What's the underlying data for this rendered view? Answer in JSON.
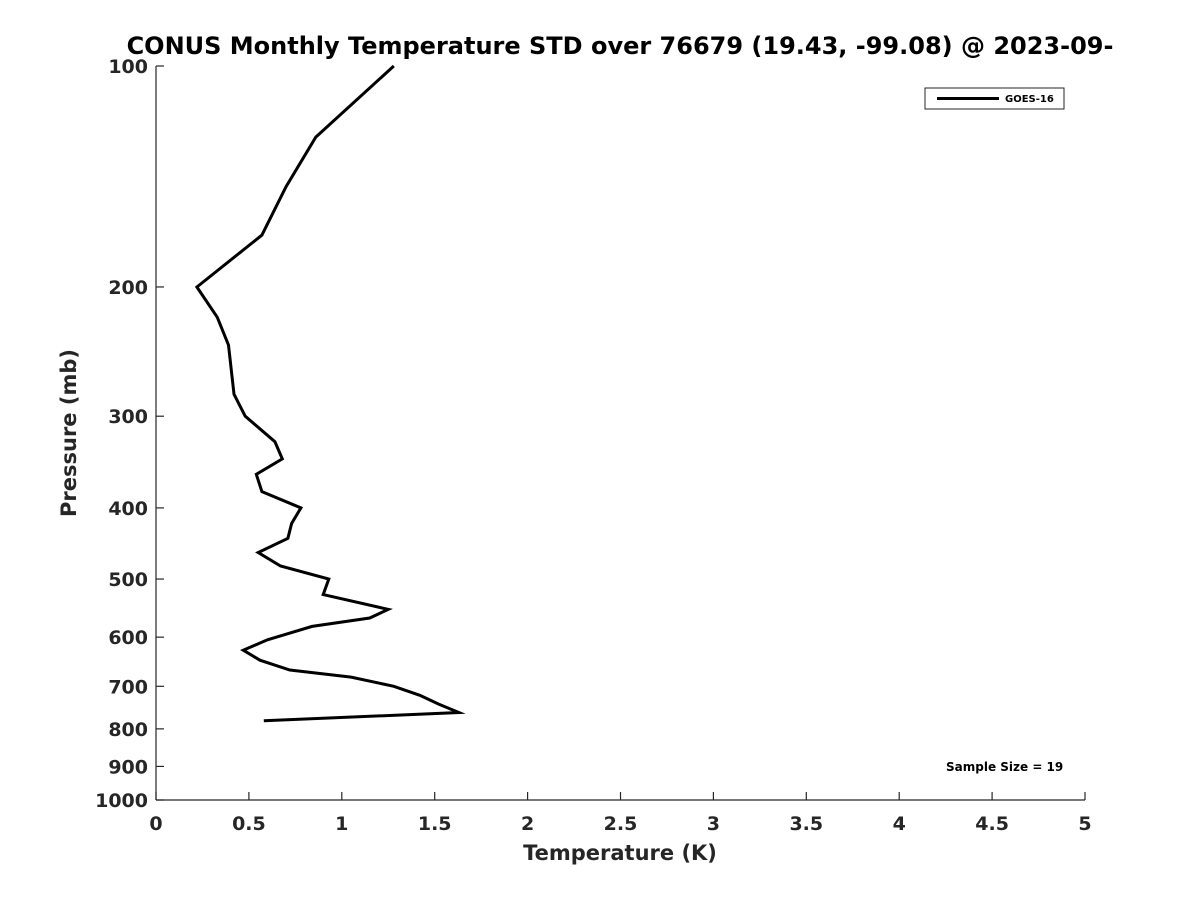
{
  "chart_data": {
    "type": "line",
    "title": "CONUS Monthly Temperature STD over 76679 (19.43, -99.08) @ 2023-09-",
    "xlabel": "Temperature (K)",
    "ylabel": "Pressure (mb)",
    "xlim": [
      0,
      5
    ],
    "ylim": [
      100,
      1000
    ],
    "y_scale": "log",
    "y_reversed": true,
    "x_ticks": [
      "0",
      "0.5",
      "1",
      "1.5",
      "2",
      "2.5",
      "3",
      "3.5",
      "4",
      "4.5",
      "5"
    ],
    "y_ticks": [
      "100",
      "200",
      "300",
      "400",
      "500",
      "600",
      "700",
      "800",
      "900",
      "1000"
    ],
    "grid": false,
    "legend_position": "top-right",
    "annotation": "Sample Size = 19",
    "series": [
      {
        "name": "GOES-16",
        "color": "#000000",
        "points": [
          {
            "x": 1.28,
            "p": 100
          },
          {
            "x": 0.86,
            "p": 125
          },
          {
            "x": 0.7,
            "p": 146
          },
          {
            "x": 0.57,
            "p": 170
          },
          {
            "x": 0.22,
            "p": 200
          },
          {
            "x": 0.33,
            "p": 220
          },
          {
            "x": 0.39,
            "p": 240
          },
          {
            "x": 0.42,
            "p": 280
          },
          {
            "x": 0.48,
            "p": 300
          },
          {
            "x": 0.64,
            "p": 325
          },
          {
            "x": 0.68,
            "p": 343
          },
          {
            "x": 0.54,
            "p": 360
          },
          {
            "x": 0.57,
            "p": 380
          },
          {
            "x": 0.78,
            "p": 400
          },
          {
            "x": 0.73,
            "p": 420
          },
          {
            "x": 0.71,
            "p": 440
          },
          {
            "x": 0.55,
            "p": 460
          },
          {
            "x": 0.67,
            "p": 480
          },
          {
            "x": 0.93,
            "p": 500
          },
          {
            "x": 0.9,
            "p": 525
          },
          {
            "x": 1.25,
            "p": 550
          },
          {
            "x": 1.15,
            "p": 565
          },
          {
            "x": 0.84,
            "p": 580
          },
          {
            "x": 0.6,
            "p": 605
          },
          {
            "x": 0.47,
            "p": 625
          },
          {
            "x": 0.56,
            "p": 645
          },
          {
            "x": 0.72,
            "p": 665
          },
          {
            "x": 1.05,
            "p": 680
          },
          {
            "x": 1.28,
            "p": 700
          },
          {
            "x": 1.42,
            "p": 720
          },
          {
            "x": 1.52,
            "p": 740
          },
          {
            "x": 1.63,
            "p": 760
          },
          {
            "x": 0.58,
            "p": 780
          }
        ]
      }
    ]
  }
}
